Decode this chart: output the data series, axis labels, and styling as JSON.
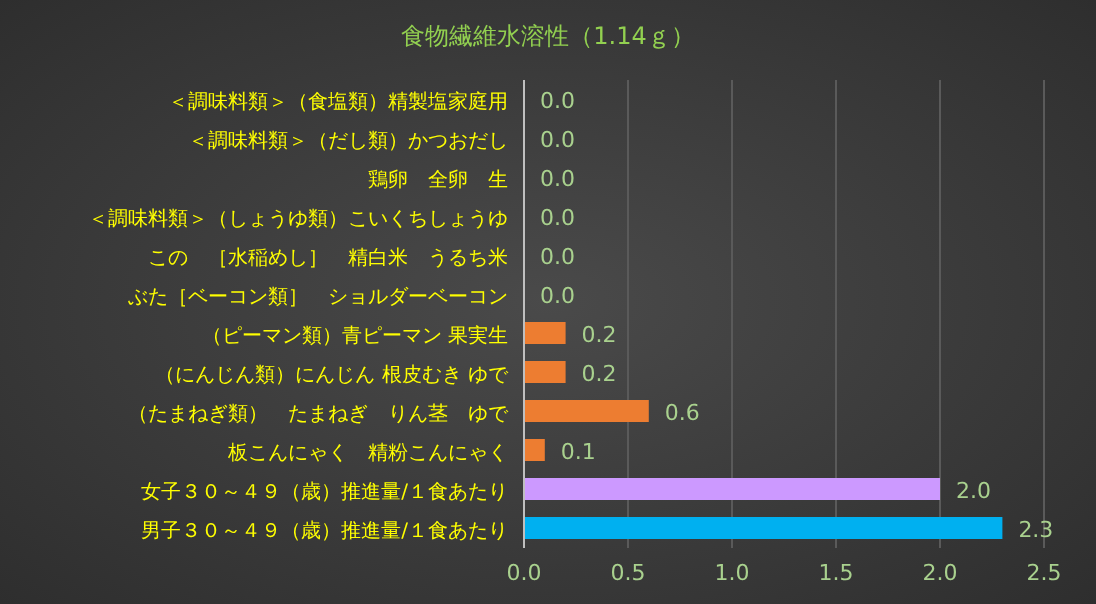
{
  "chart_data": {
    "type": "bar",
    "orientation": "horizontal",
    "title": "食物繊維水溶性（1.14ｇ）",
    "categories": [
      "＜調味料類＞（食塩類）精製塩家庭用",
      "＜調味料類＞（だし類）かつおだし",
      "鶏卵　全卵　生",
      "＜調味料類＞（しょうゆ類）こいくちしょうゆ",
      "この　［水稲めし］　精白米　うるち米",
      "ぶた［ベーコン類］　ショルダーベーコン",
      "（ピーマン類）青ピーマン 果実生",
      "（にんじん類）にんじん 根皮むき ゆで",
      "（たまねぎ類）　たまねぎ　りん茎　ゆで",
      "板こんにゃく　精粉こんにゃく",
      "女子３０～４９（歳）推進量/１食あたり",
      "男子３０～４９（歳）推進量/１食あたり"
    ],
    "values": [
      0.0,
      0.0,
      0.0,
      0.0,
      0.0,
      0.0,
      0.2,
      0.2,
      0.6,
      0.1,
      2.0,
      2.3
    ],
    "value_labels": [
      "0.0",
      "0.0",
      "0.0",
      "0.0",
      "0.0",
      "0.0",
      "0.2",
      "0.2",
      "0.6",
      "0.1",
      "2.0",
      "2.3"
    ],
    "colors": [
      "#ed7d31",
      "#ed7d31",
      "#ed7d31",
      "#ed7d31",
      "#ed7d31",
      "#ed7d31",
      "#ed7d31",
      "#ed7d31",
      "#ed7d31",
      "#ed7d31",
      "#cc99ff",
      "#00b0f0"
    ],
    "xlim": [
      0,
      2.5
    ],
    "xticks": [
      {
        "value": 0,
        "label": "0.0"
      },
      0.5,
      {
        "value": 1,
        "label": "1.0"
      },
      1.5,
      {
        "value": 2,
        "label": "2.0"
      },
      2.5
    ],
    "grid": "x"
  }
}
